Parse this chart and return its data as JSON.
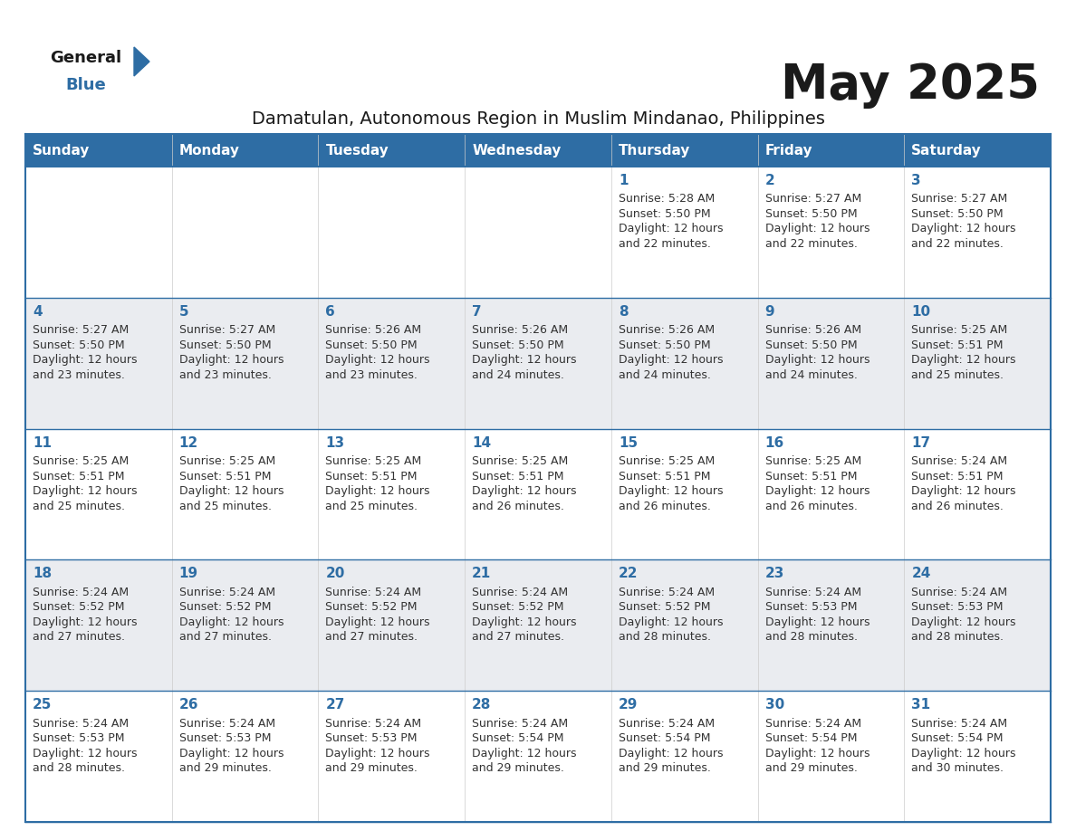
{
  "title": "May 2025",
  "subtitle": "Damatulan, Autonomous Region in Muslim Mindanao, Philippines",
  "days_of_week": [
    "Sunday",
    "Monday",
    "Tuesday",
    "Wednesday",
    "Thursday",
    "Friday",
    "Saturday"
  ],
  "header_bg": "#2E6DA4",
  "header_text": "#FFFFFF",
  "row_bg": [
    "#FFFFFF",
    "#EAECF0",
    "#FFFFFF",
    "#EAECF0",
    "#FFFFFF"
  ],
  "border_color": "#2E6DA4",
  "day_number_color": "#2E6DA4",
  "cell_text_color": "#333333",
  "title_color": "#1a1a1a",
  "subtitle_color": "#1a1a1a",
  "calendar": [
    [
      {
        "day": null,
        "sunrise": null,
        "sunset": null,
        "daylight_line1": null,
        "daylight_line2": null
      },
      {
        "day": null,
        "sunrise": null,
        "sunset": null,
        "daylight_line1": null,
        "daylight_line2": null
      },
      {
        "day": null,
        "sunrise": null,
        "sunset": null,
        "daylight_line1": null,
        "daylight_line2": null
      },
      {
        "day": null,
        "sunrise": null,
        "sunset": null,
        "daylight_line1": null,
        "daylight_line2": null
      },
      {
        "day": 1,
        "sunrise": "5:28 AM",
        "sunset": "5:50 PM",
        "daylight_line1": "Daylight: 12 hours",
        "daylight_line2": "and 22 minutes."
      },
      {
        "day": 2,
        "sunrise": "5:27 AM",
        "sunset": "5:50 PM",
        "daylight_line1": "Daylight: 12 hours",
        "daylight_line2": "and 22 minutes."
      },
      {
        "day": 3,
        "sunrise": "5:27 AM",
        "sunset": "5:50 PM",
        "daylight_line1": "Daylight: 12 hours",
        "daylight_line2": "and 22 minutes."
      }
    ],
    [
      {
        "day": 4,
        "sunrise": "5:27 AM",
        "sunset": "5:50 PM",
        "daylight_line1": "Daylight: 12 hours",
        "daylight_line2": "and 23 minutes."
      },
      {
        "day": 5,
        "sunrise": "5:27 AM",
        "sunset": "5:50 PM",
        "daylight_line1": "Daylight: 12 hours",
        "daylight_line2": "and 23 minutes."
      },
      {
        "day": 6,
        "sunrise": "5:26 AM",
        "sunset": "5:50 PM",
        "daylight_line1": "Daylight: 12 hours",
        "daylight_line2": "and 23 minutes."
      },
      {
        "day": 7,
        "sunrise": "5:26 AM",
        "sunset": "5:50 PM",
        "daylight_line1": "Daylight: 12 hours",
        "daylight_line2": "and 24 minutes."
      },
      {
        "day": 8,
        "sunrise": "5:26 AM",
        "sunset": "5:50 PM",
        "daylight_line1": "Daylight: 12 hours",
        "daylight_line2": "and 24 minutes."
      },
      {
        "day": 9,
        "sunrise": "5:26 AM",
        "sunset": "5:50 PM",
        "daylight_line1": "Daylight: 12 hours",
        "daylight_line2": "and 24 minutes."
      },
      {
        "day": 10,
        "sunrise": "5:25 AM",
        "sunset": "5:51 PM",
        "daylight_line1": "Daylight: 12 hours",
        "daylight_line2": "and 25 minutes."
      }
    ],
    [
      {
        "day": 11,
        "sunrise": "5:25 AM",
        "sunset": "5:51 PM",
        "daylight_line1": "Daylight: 12 hours",
        "daylight_line2": "and 25 minutes."
      },
      {
        "day": 12,
        "sunrise": "5:25 AM",
        "sunset": "5:51 PM",
        "daylight_line1": "Daylight: 12 hours",
        "daylight_line2": "and 25 minutes."
      },
      {
        "day": 13,
        "sunrise": "5:25 AM",
        "sunset": "5:51 PM",
        "daylight_line1": "Daylight: 12 hours",
        "daylight_line2": "and 25 minutes."
      },
      {
        "day": 14,
        "sunrise": "5:25 AM",
        "sunset": "5:51 PM",
        "daylight_line1": "Daylight: 12 hours",
        "daylight_line2": "and 26 minutes."
      },
      {
        "day": 15,
        "sunrise": "5:25 AM",
        "sunset": "5:51 PM",
        "daylight_line1": "Daylight: 12 hours",
        "daylight_line2": "and 26 minutes."
      },
      {
        "day": 16,
        "sunrise": "5:25 AM",
        "sunset": "5:51 PM",
        "daylight_line1": "Daylight: 12 hours",
        "daylight_line2": "and 26 minutes."
      },
      {
        "day": 17,
        "sunrise": "5:24 AM",
        "sunset": "5:51 PM",
        "daylight_line1": "Daylight: 12 hours",
        "daylight_line2": "and 26 minutes."
      }
    ],
    [
      {
        "day": 18,
        "sunrise": "5:24 AM",
        "sunset": "5:52 PM",
        "daylight_line1": "Daylight: 12 hours",
        "daylight_line2": "and 27 minutes."
      },
      {
        "day": 19,
        "sunrise": "5:24 AM",
        "sunset": "5:52 PM",
        "daylight_line1": "Daylight: 12 hours",
        "daylight_line2": "and 27 minutes."
      },
      {
        "day": 20,
        "sunrise": "5:24 AM",
        "sunset": "5:52 PM",
        "daylight_line1": "Daylight: 12 hours",
        "daylight_line2": "and 27 minutes."
      },
      {
        "day": 21,
        "sunrise": "5:24 AM",
        "sunset": "5:52 PM",
        "daylight_line1": "Daylight: 12 hours",
        "daylight_line2": "and 27 minutes."
      },
      {
        "day": 22,
        "sunrise": "5:24 AM",
        "sunset": "5:52 PM",
        "daylight_line1": "Daylight: 12 hours",
        "daylight_line2": "and 28 minutes."
      },
      {
        "day": 23,
        "sunrise": "5:24 AM",
        "sunset": "5:53 PM",
        "daylight_line1": "Daylight: 12 hours",
        "daylight_line2": "and 28 minutes."
      },
      {
        "day": 24,
        "sunrise": "5:24 AM",
        "sunset": "5:53 PM",
        "daylight_line1": "Daylight: 12 hours",
        "daylight_line2": "and 28 minutes."
      }
    ],
    [
      {
        "day": 25,
        "sunrise": "5:24 AM",
        "sunset": "5:53 PM",
        "daylight_line1": "Daylight: 12 hours",
        "daylight_line2": "and 28 minutes."
      },
      {
        "day": 26,
        "sunrise": "5:24 AM",
        "sunset": "5:53 PM",
        "daylight_line1": "Daylight: 12 hours",
        "daylight_line2": "and 29 minutes."
      },
      {
        "day": 27,
        "sunrise": "5:24 AM",
        "sunset": "5:53 PM",
        "daylight_line1": "Daylight: 12 hours",
        "daylight_line2": "and 29 minutes."
      },
      {
        "day": 28,
        "sunrise": "5:24 AM",
        "sunset": "5:54 PM",
        "daylight_line1": "Daylight: 12 hours",
        "daylight_line2": "and 29 minutes."
      },
      {
        "day": 29,
        "sunrise": "5:24 AM",
        "sunset": "5:54 PM",
        "daylight_line1": "Daylight: 12 hours",
        "daylight_line2": "and 29 minutes."
      },
      {
        "day": 30,
        "sunrise": "5:24 AM",
        "sunset": "5:54 PM",
        "daylight_line1": "Daylight: 12 hours",
        "daylight_line2": "and 29 minutes."
      },
      {
        "day": 31,
        "sunrise": "5:24 AM",
        "sunset": "5:54 PM",
        "daylight_line1": "Daylight: 12 hours",
        "daylight_line2": "and 30 minutes."
      }
    ]
  ]
}
